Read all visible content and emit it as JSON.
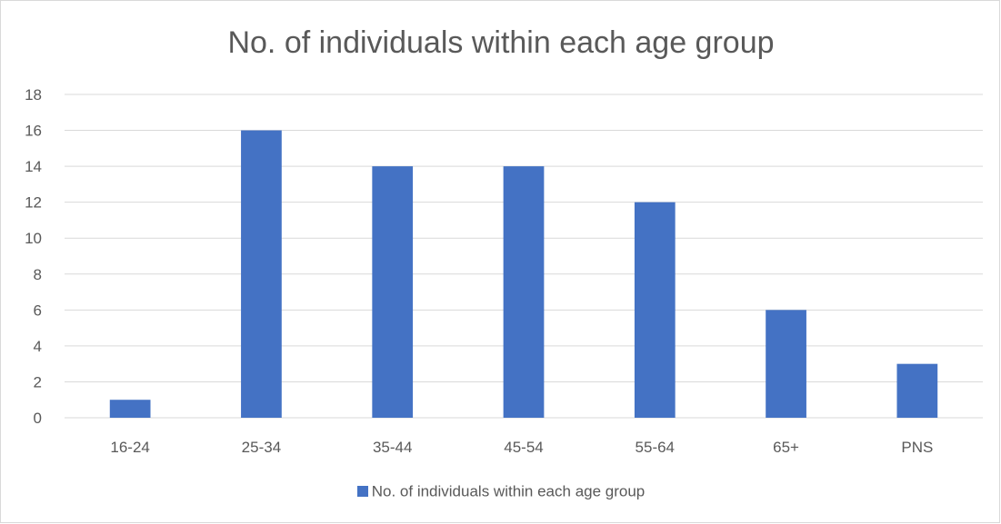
{
  "chart_data": {
    "type": "bar",
    "title": "No. of individuals within each age group",
    "categories": [
      "16-24",
      "25-34",
      "35-44",
      "45-54",
      "55-64",
      "65+",
      "PNS"
    ],
    "series": [
      {
        "name": "No. of individuals within each age group",
        "values": [
          1,
          16,
          14,
          14,
          12,
          6,
          3
        ],
        "color": "#4472c4"
      }
    ],
    "ylim": [
      0,
      18
    ],
    "yticks": [
      0,
      2,
      4,
      6,
      8,
      10,
      12,
      14,
      16,
      18
    ],
    "grid": true,
    "legend_position": "bottom"
  }
}
